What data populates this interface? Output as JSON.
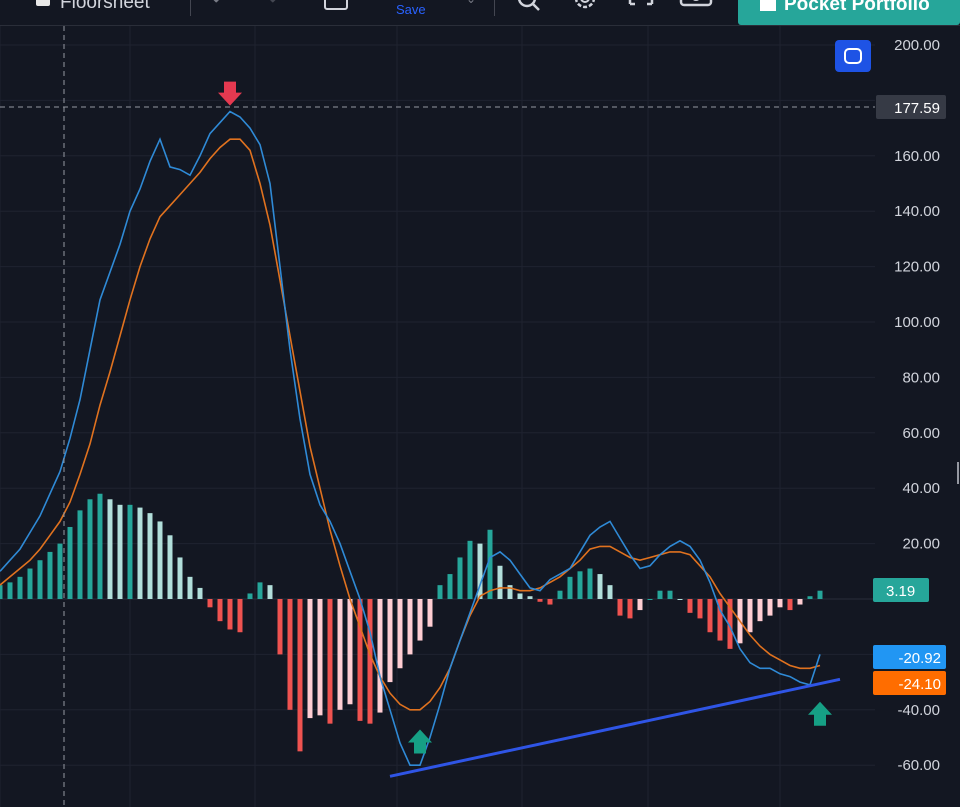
{
  "toolbar": {
    "sheet_label": "Floorsheet",
    "save_label": "Save",
    "pocket_portfolio_label": "Pocket Portfolio"
  },
  "price_axis": {
    "ticks": [
      "200.00",
      "160.00",
      "140.00",
      "120.00",
      "100.00",
      "80.00",
      "60.00",
      "40.00",
      "20.00",
      "-40.00",
      "-60.00"
    ],
    "crosshair_value": "177.59"
  },
  "badges": {
    "histogram": "3.19",
    "macd": "-20.92",
    "signal": "-24.10"
  },
  "colors": {
    "background": "#131722",
    "macd_line": "#2f8ad6",
    "signal_line": "#e0721f",
    "hist_up_strong": "#26a69a",
    "hist_up_weak": "#b2dfdb",
    "hist_down_strong": "#ef5350",
    "hist_down_weak": "#ffcdd2",
    "trendline": "#2f55e6",
    "arrow_down": "#e53950",
    "arrow_up": "#16a085",
    "accent_button": "#26a69a",
    "badge_macd": "#2196f3",
    "badge_signal": "#ff6d00"
  },
  "chart_data": {
    "type": "line",
    "ylim": [
      -65,
      205
    ],
    "series": [
      {
        "values": [
          10,
          14,
          18,
          24,
          30,
          38,
          46,
          58,
          72,
          90,
          108,
          118,
          128,
          140,
          148,
          158,
          166,
          156,
          155,
          153,
          160,
          168,
          172,
          176,
          174,
          170,
          164,
          150,
          120,
          90,
          65,
          45,
          34,
          28,
          20,
          10,
          0,
          -12,
          -28,
          -40,
          -52,
          -60,
          -60,
          -50,
          -38,
          -25,
          -15,
          -5,
          5,
          15,
          17,
          14,
          9,
          4,
          3,
          7,
          9,
          11,
          17,
          23,
          26,
          28,
          22,
          16,
          11,
          12,
          16,
          19,
          21,
          19,
          14,
          6,
          -4,
          -10,
          -18,
          -23,
          -25,
          -25,
          -27,
          -28,
          -30,
          -31,
          -20
        ]
      },
      {
        "values": [
          5,
          8,
          11,
          14,
          18,
          23,
          28,
          35,
          45,
          56,
          70,
          82,
          95,
          108,
          120,
          130,
          138,
          142,
          146,
          150,
          154,
          159,
          163,
          166,
          166,
          162,
          150,
          135,
          115,
          95,
          75,
          55,
          40,
          25,
          12,
          0,
          -10,
          -20,
          -28,
          -34,
          -38,
          -40,
          -40,
          -37,
          -32,
          -25,
          -15,
          -6,
          1,
          3,
          4,
          4,
          3,
          3,
          4,
          6,
          8,
          11,
          14,
          18,
          19,
          19,
          17,
          15,
          14,
          15,
          16,
          17,
          17,
          16,
          12,
          8,
          2,
          -3,
          -8,
          -13,
          -17,
          -20,
          -22,
          -24,
          -25,
          -25,
          -24
        ]
      },
      {
        "values": [
          5,
          6,
          8,
          11,
          14,
          17,
          20,
          26,
          32,
          36,
          38,
          36,
          34,
          34,
          33,
          31,
          28,
          23,
          15,
          8,
          4,
          -3,
          -8,
          -11,
          -12,
          2,
          6,
          5,
          -20,
          -40,
          -55,
          -43,
          -42,
          -45,
          -40,
          -38,
          -44,
          -45,
          -41,
          -30,
          -25,
          -20,
          -15,
          -10,
          5,
          9,
          15,
          21,
          20,
          25,
          12,
          5,
          2,
          1,
          -1,
          -2,
          3,
          8,
          10,
          11,
          9,
          5,
          -6,
          -7,
          -4,
          0,
          3,
          3,
          0,
          -5,
          -7,
          -12,
          -15,
          -18,
          -16,
          -12,
          -8,
          -6,
          -3,
          -4,
          -2,
          1,
          3
        ]
      }
    ],
    "annotations": [
      {
        "type": "arrow_down",
        "x": 23,
        "y": 181
      },
      {
        "type": "arrow_up",
        "x": 42,
        "y": -50
      },
      {
        "type": "arrow_up",
        "x": 82,
        "y": -40
      },
      {
        "type": "trendline",
        "x1": 39,
        "y1": -64,
        "x2": 84,
        "y2": -29
      }
    ]
  }
}
